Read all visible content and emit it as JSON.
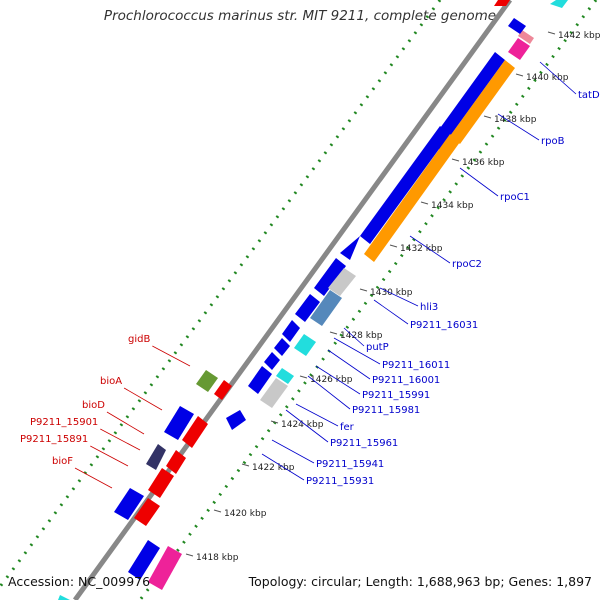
{
  "title": "Prochlorococcus marinus str. MIT 9211, complete genome",
  "footer": {
    "accession": "Accession: NC_009976",
    "summary": "Topology: circular; Length: 1,688,963 bp; Genes: 1,897"
  },
  "colors": {
    "backbone": "#888888",
    "gene_blue": "#0000e6",
    "gene_orange": "#ff9900",
    "gene_red": "#ee0000",
    "gene_cyan": "#22dddd",
    "gene_gray": "#c8c8c8",
    "gene_magenta": "#ee2299",
    "gene_green": "#669933",
    "gene_steel": "#5588bb",
    "dots": "#228822",
    "label_right": "#0000cc",
    "label_left": "#cc0000"
  },
  "kbp_ticks": [
    "1418 kbp",
    "1420 kbp",
    "1422 kbp",
    "1424 kbp",
    "1426 kbp",
    "1428 kbp",
    "1430 kbp",
    "1432 kbp",
    "1434 kbp",
    "1436 kbp",
    "1438 kbp",
    "1440 kbp",
    "1442 kbp"
  ],
  "genes_right": [
    "tatD",
    "rpoB",
    "rpoC1",
    "rpoC2",
    "hli3",
    "P9211_16031",
    "putP",
    "P9211_16011",
    "P9211_16001",
    "P9211_15991",
    "P9211_15981",
    "fer",
    "P9211_15961",
    "P9211_15941",
    "P9211_15931"
  ],
  "genes_left": [
    "gidB",
    "bioA",
    "bioD",
    "P9211_15901",
    "P9211_15891",
    "bioF"
  ]
}
